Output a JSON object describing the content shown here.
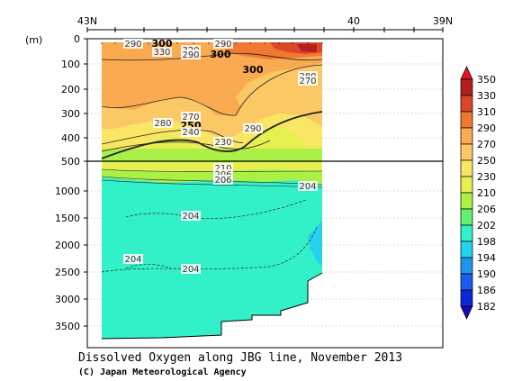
{
  "chart_data": {
    "type": "contour",
    "title": "Dissolved Oxygen along JBG line, November 2013",
    "copyright": "(C) Japan Meteorological Agency",
    "ylabel": "(m)",
    "x_ticks": [
      "43N",
      "40",
      "39N"
    ],
    "y_upper_ticks": [
      "0",
      "100",
      "200",
      "300",
      "400",
      "500"
    ],
    "y_lower_ticks": [
      "1000",
      "1500",
      "2000",
      "2500",
      "3000",
      "3500"
    ],
    "ylim_upper": [
      0,
      500
    ],
    "ylim_lower": [
      500,
      3800
    ],
    "colorbar": {
      "levels": [
        182,
        186,
        190,
        194,
        198,
        202,
        206,
        210,
        230,
        250,
        270,
        290,
        310,
        330,
        350
      ],
      "labels": [
        "350",
        "330",
        "310",
        "290",
        "270",
        "250",
        "230",
        "210",
        "206",
        "202",
        "198",
        "194",
        "190",
        "186",
        "182"
      ],
      "colors": [
        "#1a0ab4",
        "#0a28d8",
        "#1e5af0",
        "#1e96f0",
        "#24d2f0",
        "#32f0c8",
        "#64f070",
        "#aaf046",
        "#e6f050",
        "#fae664",
        "#fac864",
        "#faaa50",
        "#f07832",
        "#dc4628",
        "#b41e1e",
        "#e6141e"
      ]
    },
    "contour_labels": [
      {
        "text": "290"
      },
      {
        "text": "300",
        "bold": true
      },
      {
        "text": "320"
      },
      {
        "text": "330"
      },
      {
        "text": "290"
      },
      {
        "text": "300",
        "bold": true
      },
      {
        "text": "290"
      },
      {
        "text": "300",
        "bold": true
      },
      {
        "text": "280"
      },
      {
        "text": "270"
      },
      {
        "text": "270"
      },
      {
        "text": "250",
        "bold": true
      },
      {
        "text": "240"
      },
      {
        "text": "280"
      },
      {
        "text": "290"
      },
      {
        "text": "230"
      },
      {
        "text": "210"
      },
      {
        "text": "206"
      },
      {
        "text": "206"
      },
      {
        "text": "204"
      },
      {
        "text": "204"
      },
      {
        "text": "204"
      },
      {
        "text": "204"
      }
    ]
  }
}
